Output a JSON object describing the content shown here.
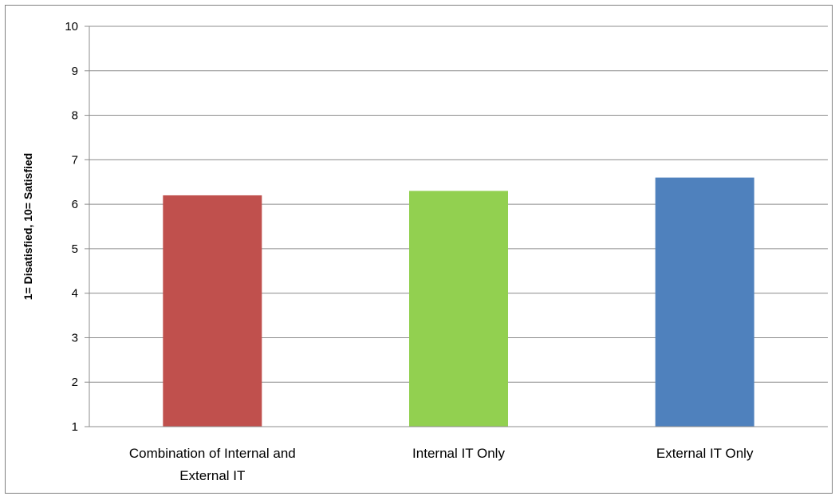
{
  "chart_data": {
    "type": "bar",
    "title": "",
    "xlabel": "",
    "ylabel": "1= Disatisfied,  10= Satisfied",
    "ylim": [
      1,
      10
    ],
    "yticks": [
      1,
      2,
      3,
      4,
      5,
      6,
      7,
      8,
      9,
      10
    ],
    "grid": true,
    "legend": "none",
    "categories": [
      [
        "Combination of Internal and",
        "External IT"
      ],
      [
        "Internal IT Only"
      ],
      [
        "External IT Only"
      ]
    ],
    "values": [
      6.2,
      6.3,
      6.6
    ],
    "colors": [
      "#c0504d",
      "#92d050",
      "#4f81bd"
    ]
  }
}
